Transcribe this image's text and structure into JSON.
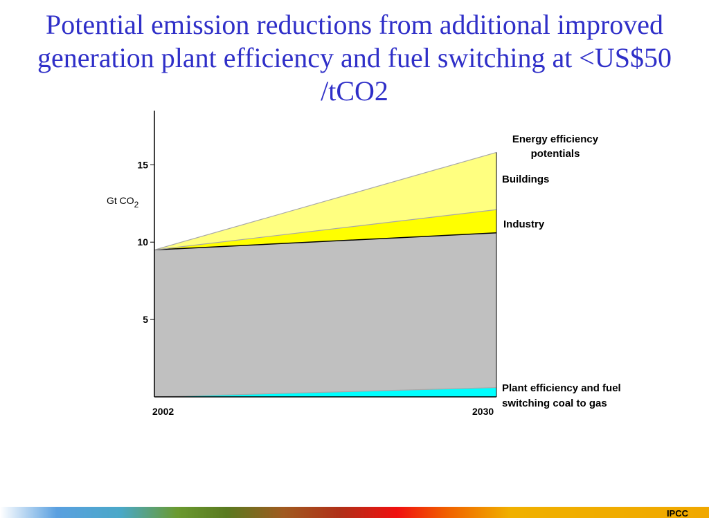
{
  "slide": {
    "title": "Potential emission reductions from additional improved generation plant efficiency and fuel switching at <US$50 /tCO2",
    "footer_label": "IPCC"
  },
  "colors": {
    "title": "#2f2fc8",
    "baseline": "#c0c0c0",
    "plant_efficiency": "#00ffff",
    "industry": "#ffff00",
    "buildings": "#ffff80"
  },
  "chart_data": {
    "type": "area",
    "stacked": true,
    "x": [
      2002,
      2030
    ],
    "xticks": [
      "2002",
      "2030"
    ],
    "ylabel": "Gt CO",
    "ylabel_subscript": "2",
    "ylim": [
      0,
      18.5
    ],
    "yticks": [
      5,
      10,
      15
    ],
    "series": [
      {
        "key": "plant",
        "name": "Plant efficiency and fuel switching coal to gas",
        "lower": [
          0,
          0
        ],
        "upper": [
          0,
          0.6
        ],
        "color": "#00ffff"
      },
      {
        "key": "baseline",
        "name": "",
        "lower": [
          0,
          0.6
        ],
        "upper": [
          9.5,
          10.6
        ],
        "color": "#c0c0c0"
      },
      {
        "key": "industry",
        "name": "Industry",
        "lower": [
          9.5,
          10.6
        ],
        "upper": [
          9.5,
          12.1
        ],
        "color": "#ffff00"
      },
      {
        "key": "buildings",
        "name": "Buildings",
        "lower": [
          9.5,
          12.1
        ],
        "upper": [
          9.5,
          15.8
        ],
        "color": "#ffff80"
      }
    ],
    "annotations": {
      "energy_efficiency_line1": "Energy efficiency",
      "energy_efficiency_line2": "potentials",
      "buildings": "Buildings",
      "industry": "Industry",
      "plant_line1": "Plant efficiency and fuel",
      "plant_line2": "switching coal to gas"
    }
  }
}
